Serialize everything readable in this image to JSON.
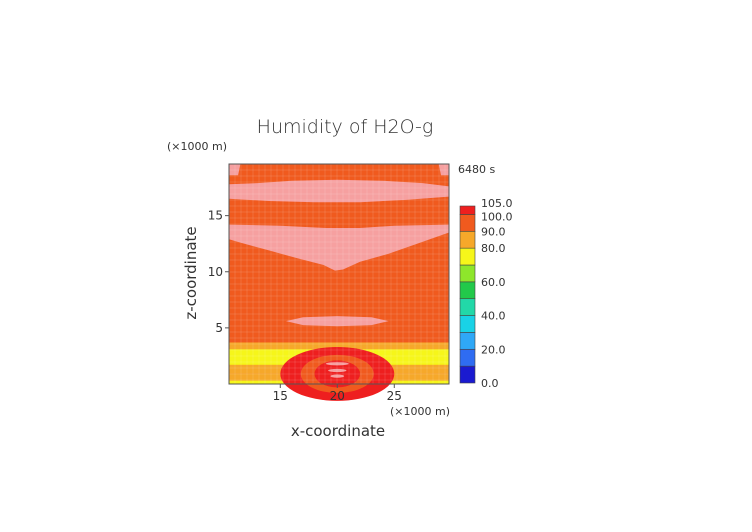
{
  "chart_data": {
    "type": "heatmap",
    "title": "Humidity of H2O-g",
    "xlabel": "x-coordinate",
    "ylabel": "z-coordinate",
    "x_unit": "(×1000 m)",
    "y_unit": "(×1000 m)",
    "time_label": "6480 s",
    "xlim": [
      10.5,
      29.8
    ],
    "ylim": [
      0,
      19.6
    ],
    "x_ticks": [
      15,
      20,
      25
    ],
    "y_ticks": [
      5,
      10,
      15
    ],
    "grid": true,
    "colorbar": {
      "levels": [
        0,
        10,
        20,
        30,
        40,
        50,
        60,
        70,
        80,
        90,
        100,
        105
      ],
      "tick_labels": [
        "105.0",
        "100.0",
        "90.0",
        "80.0",
        "60.0",
        "40.0",
        "20.0",
        "0.0"
      ],
      "colors": [
        "#1a1ad0",
        "#2f6cf2",
        "#2fa8f7",
        "#19d2e6",
        "#22d8a8",
        "#22c94a",
        "#8ee62b",
        "#f6f61a",
        "#f6a82a",
        "#f05a1e",
        "#ee1f1f",
        "#ffffff"
      ]
    },
    "field_description_levels": {
      "background": 95,
      "light_regions": 101,
      "near_surface_bands": [
        {
          "z_range": [
            3.1,
            3.7
          ],
          "value": 85
        },
        {
          "z_range": [
            1.7,
            3.1
          ],
          "value": 78
        },
        {
          "z_range": [
            0.9,
            1.7
          ],
          "value": 88
        },
        {
          "z_range": [
            0.3,
            0.9
          ],
          "value": 82
        },
        {
          "z_range": [
            0.0,
            0.3
          ],
          "value": 72
        }
      ]
    }
  }
}
